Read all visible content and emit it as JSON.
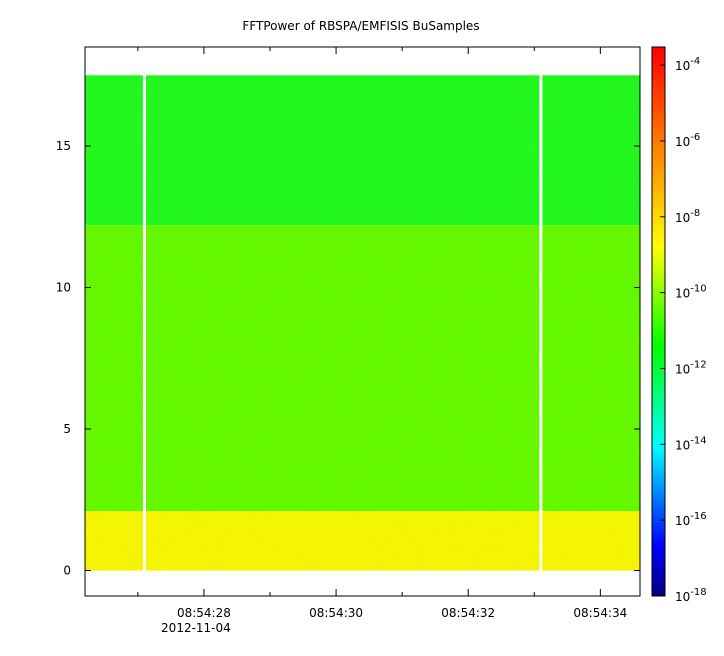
{
  "chart_data": {
    "type": "heatmap",
    "title": "FFTPower of RBSPA/EMFISIS  BuSamples",
    "xlabel": "",
    "ylabel": "",
    "x_axis": {
      "range": [
        "08:54:26.2",
        "08:54:34.6"
      ],
      "major_ticks": [
        {
          "t": "08:54:28",
          "label": "08:54:28",
          "sublabel": "2012-11-04"
        },
        {
          "t": "08:54:30",
          "label": "08:54:30"
        },
        {
          "t": "08:54:32",
          "label": "08:54:32"
        },
        {
          "t": "08:54:34",
          "label": "08:54:34"
        }
      ],
      "minor_ticks": [
        "08:54:27",
        "08:54:29",
        "08:54:31",
        "08:54:33"
      ]
    },
    "y_axis": {
      "range": [
        -0.9,
        18.5
      ],
      "ticks": [
        0,
        5,
        10,
        15
      ],
      "tick_labels": [
        "0",
        "5",
        "10",
        "15"
      ]
    },
    "data_extent": {
      "x": [
        "08:54:26.2",
        "08:54:34.6"
      ],
      "y": [
        0,
        17.5
      ]
    },
    "data_gaps": [
      "08:54:27.1",
      "08:54:33.1"
    ],
    "bands": [
      {
        "y_range": [
          0,
          2.1
        ],
        "log10_power": -8.7
      },
      {
        "y_range": [
          2.1,
          12.2
        ],
        "log10_power": -10.6
      },
      {
        "y_range": [
          12.2,
          17.5
        ],
        "log10_power": -11.8
      }
    ],
    "colorbar": {
      "scale": "log",
      "range": [
        1e-18,
        0.0003
      ],
      "colormap": [
        "#00007f",
        "#0000ff",
        "#007fff",
        "#00ffff",
        "#00ff7f",
        "#00ff00",
        "#7fff00",
        "#ffff00",
        "#ffbf00",
        "#ff7f00",
        "#ff3f00",
        "#ff0000"
      ],
      "ticks": [
        {
          "base": "10",
          "exp": "-4",
          "value": -4
        },
        {
          "base": "10",
          "exp": "-6",
          "value": -6
        },
        {
          "base": "10",
          "exp": "-8",
          "value": -8
        },
        {
          "base": "10",
          "exp": "-10",
          "value": -10
        },
        {
          "base": "10",
          "exp": "-12",
          "value": -12
        },
        {
          "base": "10",
          "exp": "-14",
          "value": -14
        },
        {
          "base": "10",
          "exp": "-16",
          "value": -16
        },
        {
          "base": "10",
          "exp": "-18",
          "value": -18
        }
      ]
    }
  }
}
